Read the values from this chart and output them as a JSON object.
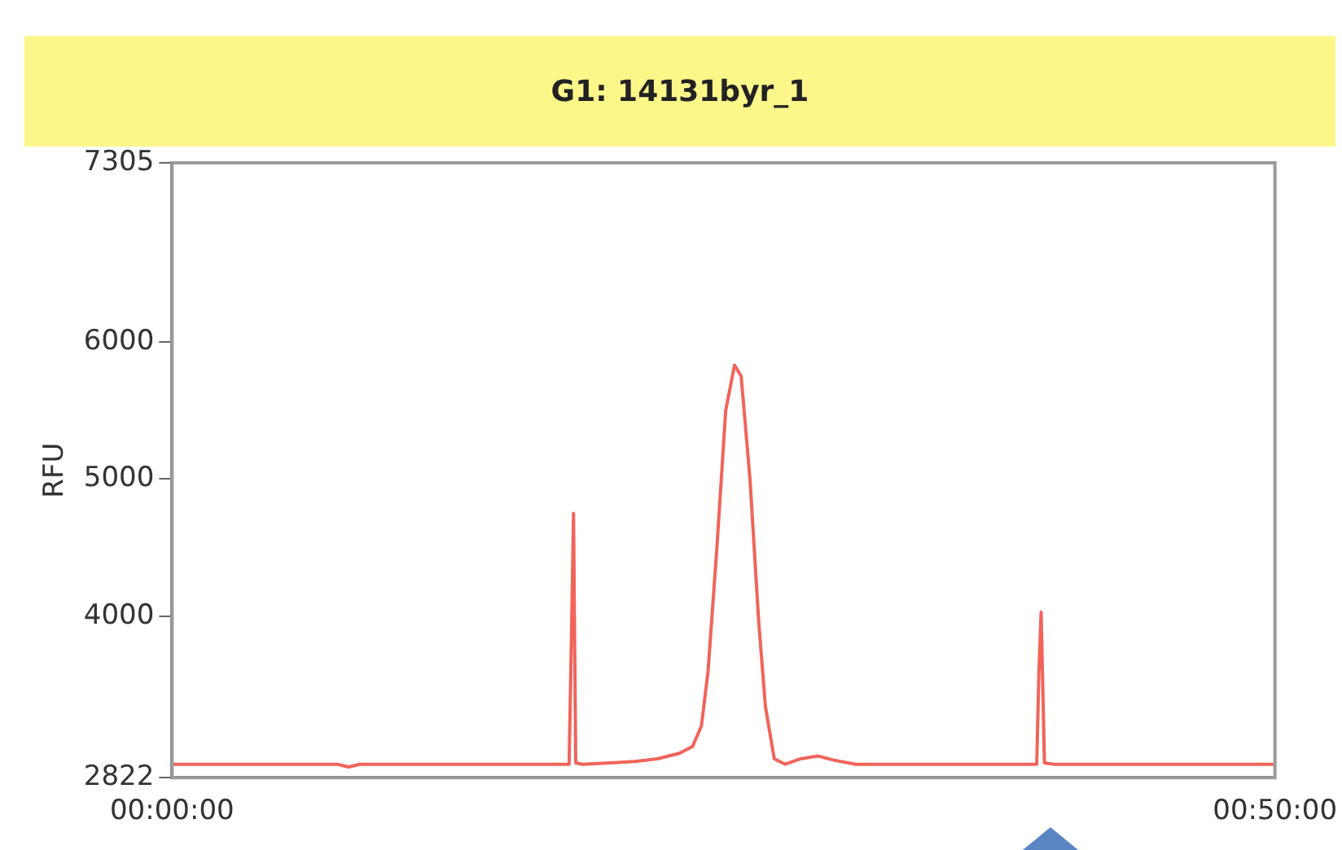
{
  "chart_data": {
    "type": "line",
    "title": "G1: 14131byr_1",
    "ylabel": "RFU",
    "x": [
      0,
      7.5,
      8,
      8.5,
      15,
      18.0,
      18.1,
      18.2,
      18.3,
      18.6,
      21,
      22,
      23,
      23.6,
      24,
      24.3,
      24.7,
      25.1,
      25.5,
      25.8,
      26.2,
      26.6,
      26.9,
      27.3,
      27.8,
      28.5,
      29.3,
      30,
      31,
      38,
      39.2,
      39.3,
      39.4,
      39.55,
      40,
      50
    ],
    "series": [
      {
        "color": "#f0645a",
        "values": [
          2920,
          2920,
          2900,
          2920,
          2920,
          2920,
          3800,
          4750,
          2930,
          2920,
          2940,
          2960,
          3000,
          3050,
          3200,
          3600,
          4500,
          5500,
          5830,
          5750,
          5000,
          3950,
          3340,
          2960,
          2920,
          2960,
          2980,
          2950,
          2920,
          2920,
          2920,
          3600,
          4030,
          2930,
          2920,
          2920
        ]
      }
    ],
    "xlim": [
      0,
      50
    ],
    "xticks": [
      {
        "value": 0,
        "label": "00:00:00"
      },
      {
        "value": 50,
        "label": "00:50:00"
      }
    ],
    "ylim": [
      2822,
      7305
    ],
    "yticks": [
      2822,
      4000,
      5000,
      6000,
      7305
    ],
    "grid": false,
    "legend": false,
    "marker": "none",
    "line_style": "solid"
  }
}
